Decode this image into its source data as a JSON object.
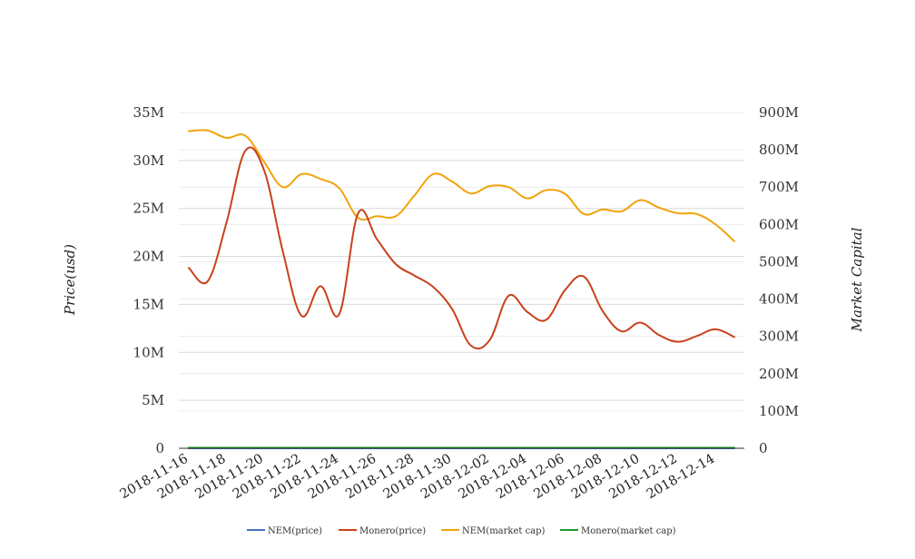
{
  "chart_data": {
    "type": "line",
    "title": "",
    "ylabel_left": "Price(usd)",
    "ylabel_right": "Market Capital",
    "ylim_left": [
      0,
      35000000
    ],
    "ylim_right": [
      0,
      900000000
    ],
    "yticks_left": [
      "0",
      "5M",
      "10M",
      "15M",
      "20M",
      "25M",
      "30M",
      "35M"
    ],
    "yticks_right": [
      "0",
      "100M",
      "200M",
      "300M",
      "400M",
      "500M",
      "600M",
      "700M",
      "800M",
      "900M"
    ],
    "grid": true,
    "legend_position": "bottom",
    "x": [
      "2018-11-16",
      "2018-11-17",
      "2018-11-18",
      "2018-11-19",
      "2018-11-20",
      "2018-11-21",
      "2018-11-22",
      "2018-11-23",
      "2018-11-24",
      "2018-11-25",
      "2018-11-26",
      "2018-11-27",
      "2018-11-28",
      "2018-11-29",
      "2018-11-30",
      "2018-12-01",
      "2018-12-02",
      "2018-12-03",
      "2018-12-04",
      "2018-12-05",
      "2018-12-06",
      "2018-12-07",
      "2018-12-08",
      "2018-12-09",
      "2018-12-10",
      "2018-12-11",
      "2018-12-12",
      "2018-12-13",
      "2018-12-14",
      "2018-12-15"
    ],
    "xtick_labels": [
      "2018-11-16",
      "2018-11-18",
      "2018-11-20",
      "2018-11-22",
      "2018-11-24",
      "2018-11-26",
      "2018-11-28",
      "2018-11-30",
      "2018-12-02",
      "2018-12-04",
      "2018-12-06",
      "2018-12-08",
      "2018-12-10",
      "2018-12-12",
      "2018-12-14"
    ],
    "series": [
      {
        "name": "NEM(price)",
        "axis": "left",
        "color": "#4472c4",
        "values": [
          0.09,
          0.09,
          0.09,
          0.09,
          0.08,
          0.08,
          0.08,
          0.08,
          0.08,
          0.07,
          0.07,
          0.07,
          0.08,
          0.08,
          0.08,
          0.07,
          0.07,
          0.07,
          0.07,
          0.07,
          0.07,
          0.07,
          0.06,
          0.06,
          0.06,
          0.06,
          0.06,
          0.06,
          0.06,
          0.06
        ]
      },
      {
        "name": "Monero(price)",
        "axis": "left",
        "color": "#c9411b",
        "values": [
          18800000,
          17400000,
          23500000,
          31000000,
          29000000,
          20500000,
          13800000,
          16900000,
          14000000,
          24500000,
          21800000,
          19200000,
          18000000,
          16800000,
          14500000,
          10700000,
          11300000,
          15900000,
          14200000,
          13400000,
          16500000,
          17900000,
          14300000,
          12200000,
          13100000,
          11800000,
          11100000,
          11700000,
          12400000,
          11600000
        ]
      },
      {
        "name": "NEM(market cap)",
        "axis": "right",
        "color": "#f0a30a",
        "values": [
          850000000,
          852000000,
          832000000,
          838000000,
          768000000,
          700000000,
          735000000,
          722000000,
          697000000,
          618000000,
          622000000,
          622000000,
          678000000,
          735000000,
          715000000,
          683000000,
          703000000,
          700000000,
          670000000,
          692000000,
          682000000,
          628000000,
          640000000,
          635000000,
          665000000,
          645000000,
          630000000,
          628000000,
          600000000,
          555000000
        ]
      },
      {
        "name": "Monero(market cap)",
        "axis": "right",
        "color": "#1a9b2e",
        "values": [
          1500000,
          1500000,
          1500000,
          1500000,
          1500000,
          1500000,
          1500000,
          1500000,
          1500000,
          1500000,
          1500000,
          1500000,
          1500000,
          1500000,
          1500000,
          1500000,
          1500000,
          1500000,
          1500000,
          1500000,
          1500000,
          1500000,
          1500000,
          1500000,
          1500000,
          1500000,
          1500000,
          1500000,
          1500000,
          1500000
        ]
      }
    ]
  }
}
